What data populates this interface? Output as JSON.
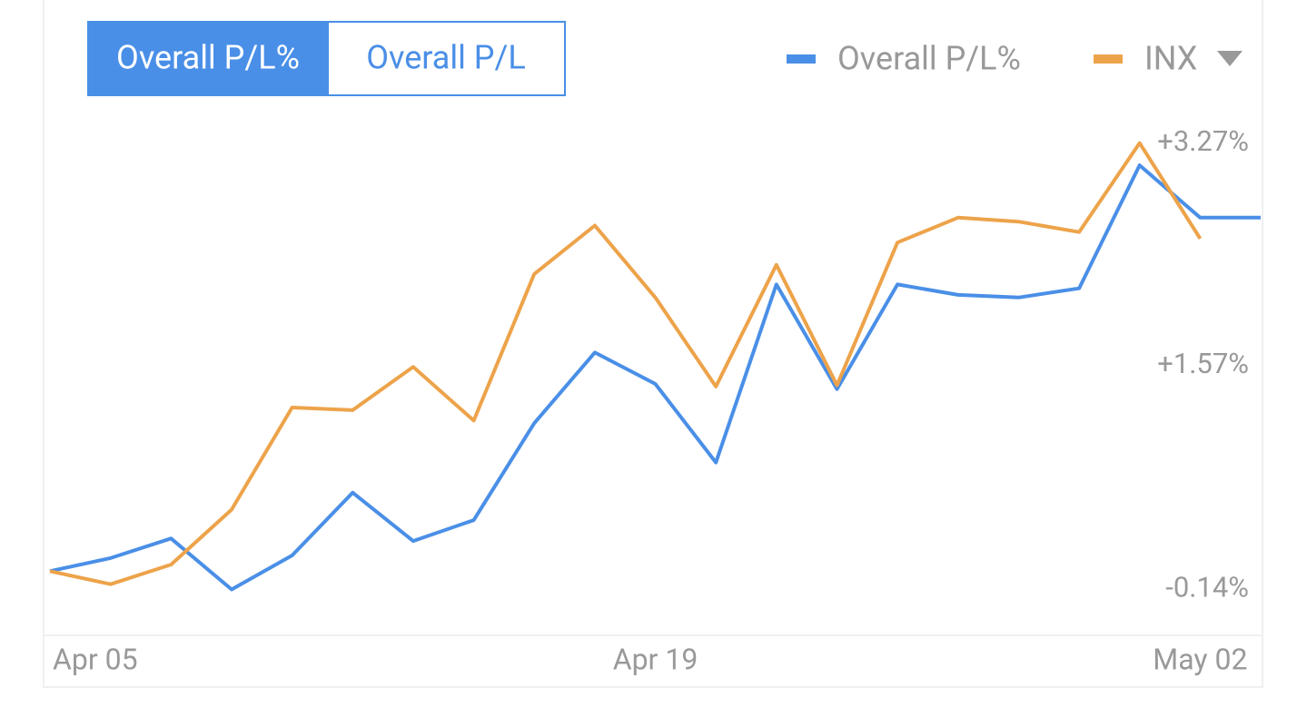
{
  "tabs": [
    "Overall P/L%",
    "Overall P/L"
  ],
  "chart_data": {
    "type": "line",
    "categories": [
      "Apr 05",
      null,
      null,
      null,
      null,
      null,
      null,
      null,
      null,
      null,
      "Apr 19",
      null,
      null,
      null,
      null,
      null,
      null,
      null,
      null,
      "May 02",
      null
    ],
    "series": [
      {
        "name": "Overall P/L%",
        "color": "#4a8fe7",
        "values": [
          0.0,
          0.1,
          0.25,
          -0.14,
          0.12,
          0.6,
          0.23,
          0.39,
          1.13,
          1.67,
          1.43,
          0.83,
          2.19,
          1.39,
          2.19,
          2.11,
          2.09,
          2.16,
          3.1,
          2.7,
          2.7
        ]
      },
      {
        "name": "INX",
        "color": "#eda34a",
        "values": [
          0.0,
          -0.1,
          0.05,
          0.47,
          1.25,
          1.23,
          1.56,
          1.15,
          2.27,
          2.64,
          2.09,
          1.41,
          2.34,
          1.42,
          2.51,
          2.7,
          2.67,
          2.59,
          3.27,
          2.54,
          null
        ]
      }
    ],
    "ylim": [
      -0.49,
      3.6
    ],
    "yticks": [
      {
        "value": 3.27,
        "label": "+3.27%"
      },
      {
        "value": 1.57,
        "label": "+1.57%"
      },
      {
        "value": -0.14,
        "label": "-0.14%"
      }
    ],
    "grid": false
  }
}
